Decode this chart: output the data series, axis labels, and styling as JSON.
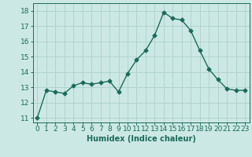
{
  "x": [
    0,
    1,
    2,
    3,
    4,
    5,
    6,
    7,
    8,
    9,
    10,
    11,
    12,
    13,
    14,
    15,
    16,
    17,
    18,
    19,
    20,
    21,
    22,
    23
  ],
  "y": [
    11.0,
    12.8,
    12.7,
    12.6,
    13.1,
    13.3,
    13.2,
    13.3,
    13.4,
    12.7,
    13.9,
    14.8,
    15.4,
    16.4,
    17.9,
    17.5,
    17.4,
    16.7,
    15.4,
    14.2,
    13.5,
    12.9,
    12.8,
    12.8
  ],
  "line_color": "#1a6b5a",
  "bg_color": "#cce8e4",
  "grid_color": "#aecfcb",
  "xlabel": "Humidex (Indice chaleur)",
  "ylim": [
    10.7,
    18.5
  ],
  "xlim": [
    -0.5,
    23.5
  ],
  "yticks": [
    11,
    12,
    13,
    14,
    15,
    16,
    17,
    18
  ],
  "xticks": [
    0,
    1,
    2,
    3,
    4,
    5,
    6,
    7,
    8,
    9,
    10,
    11,
    12,
    13,
    14,
    15,
    16,
    17,
    18,
    19,
    20,
    21,
    22,
    23
  ],
  "xlabel_fontsize": 7,
  "tick_fontsize": 6.5,
  "marker": "D",
  "markersize": 2.5,
  "linewidth": 1.0
}
